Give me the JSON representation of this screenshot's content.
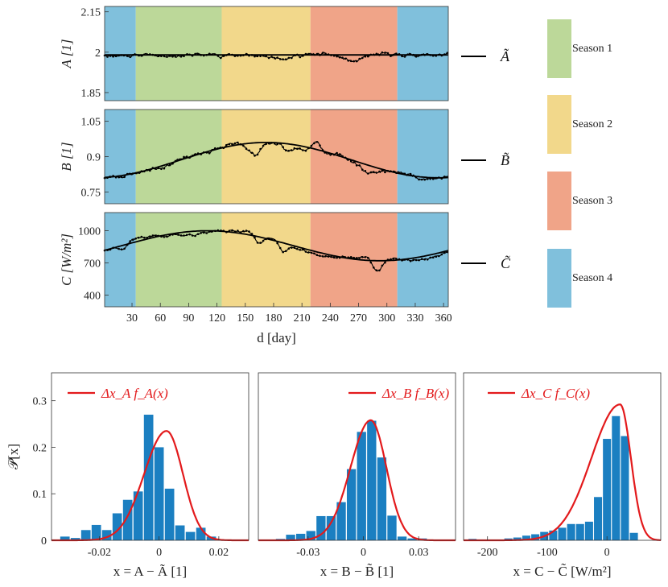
{
  "seasons": [
    {
      "label": "Season 1",
      "color": "#bcd899"
    },
    {
      "label": "Season 2",
      "color": "#f2d88b"
    },
    {
      "label": "Season 3",
      "color": "#f0a488"
    },
    {
      "label": "Season 4",
      "color": "#80c0dc"
    }
  ],
  "season_bands": [
    {
      "from": 1,
      "to": 34,
      "season": 3
    },
    {
      "from": 34,
      "to": 125,
      "season": 0
    },
    {
      "from": 125,
      "to": 219,
      "season": 1
    },
    {
      "from": 219,
      "to": 311,
      "season": 2
    },
    {
      "from": 311,
      "to": 365,
      "season": 3
    }
  ],
  "line_color": "#000000",
  "fit_color": "#e31a1c",
  "bar_color": "#1b7fc1",
  "chart_data": [
    {
      "type": "line",
      "title": "",
      "ylabel": "A [1]",
      "xlabel": "",
      "xlim": [
        1,
        365
      ],
      "ylim": [
        1.82,
        2.17
      ],
      "yticks": [
        "1.85",
        "2",
        "2.15"
      ],
      "ytick_values": [
        1.85,
        2.0,
        2.15
      ],
      "xticks": [],
      "legend_label": "Ã",
      "smooth": {
        "baseline": 1.99,
        "amp": 0.0,
        "peak_day": 172
      },
      "observed": {
        "seed": 11,
        "noise": 0.008,
        "dips": [
          {
            "day": 265,
            "depth": -0.025,
            "width": 15
          },
          {
            "day": 180,
            "depth": -0.01,
            "width": 20
          }
        ]
      }
    },
    {
      "type": "line",
      "title": "",
      "ylabel": "B [1]",
      "xlabel": "",
      "xlim": [
        1,
        365
      ],
      "ylim": [
        0.7,
        1.1
      ],
      "yticks": [
        "0.75",
        "0.9",
        "1.05"
      ],
      "ytick_values": [
        0.75,
        0.9,
        1.05
      ],
      "xticks": [],
      "legend_label": "B̃",
      "smooth": {
        "baseline": 0.81,
        "amp": 0.15,
        "peak_day": 172
      },
      "observed": {
        "seed": 23,
        "noise": 0.01,
        "dips": [
          {
            "day": 160,
            "depth": -0.05,
            "width": 8
          },
          {
            "day": 195,
            "depth": -0.035,
            "width": 8
          },
          {
            "day": 280,
            "depth": -0.03,
            "width": 12
          },
          {
            "day": 225,
            "depth": 0.04,
            "width": 6
          }
        ]
      }
    },
    {
      "type": "line",
      "title": "",
      "ylabel": "C [W/m²]",
      "xlabel": "d [day]",
      "xlim": [
        1,
        365
      ],
      "ylim": [
        290,
        1170
      ],
      "yticks": [
        "400",
        "700",
        "1000"
      ],
      "ytick_values": [
        400,
        700,
        1000
      ],
      "xticks": [
        "30",
        "60",
        "90",
        "120",
        "150",
        "180",
        "210",
        "240",
        "270",
        "300",
        "330",
        "360"
      ],
      "xtick_values": [
        30,
        60,
        90,
        120,
        150,
        180,
        210,
        240,
        270,
        300,
        330,
        360
      ],
      "legend_label": "C̃",
      "smooth": {
        "baseline": 720,
        "amp": 280,
        "peak_day": 110
      },
      "observed": {
        "seed": 37,
        "noise": 14,
        "dips": [
          {
            "day": 165,
            "depth": -90,
            "width": 6
          },
          {
            "day": 190,
            "depth": -70,
            "width": 6
          },
          {
            "day": 290,
            "depth": -130,
            "width": 7
          },
          {
            "day": 20,
            "depth": -60,
            "width": 6
          }
        ]
      }
    },
    {
      "type": "bar",
      "title": "",
      "ylabel": "𝒫[x]",
      "xlabel": "x = A − Ã   [1]",
      "xlim": [
        -0.036,
        0.03
      ],
      "ylim": [
        0,
        0.36
      ],
      "xticks": [
        "-0.02",
        "0",
        "0.02"
      ],
      "xtick_values": [
        -0.02,
        0,
        0.02
      ],
      "yticks": [
        "0",
        "0.1",
        "0.2",
        "0.3"
      ],
      "ytick_values": [
        0,
        0.1,
        0.2,
        0.3
      ],
      "bin_width": 0.0035,
      "bin_centers": [
        -0.0315,
        -0.028,
        -0.0245,
        -0.021,
        -0.0175,
        -0.014,
        -0.0105,
        -0.007,
        -0.0035,
        0.0,
        0.0035,
        0.007,
        0.0105,
        0.014,
        0.0175,
        0.021,
        0.0245
      ],
      "values": [
        0.008,
        0.005,
        0.022,
        0.033,
        0.022,
        0.058,
        0.087,
        0.105,
        0.27,
        0.2,
        0.111,
        0.032,
        0.018,
        0.027,
        0.008,
        0.0,
        0.0
      ],
      "legend_label": "Δx_A f_A(x)",
      "fit": {
        "mu": 0.0025,
        "sigma_left": 0.0075,
        "sigma_right": 0.0055,
        "peak": 0.235
      }
    },
    {
      "type": "bar",
      "title": "",
      "ylabel": "",
      "xlabel": "x = B − B̃   [1]",
      "xlim": [
        -0.057,
        0.05
      ],
      "ylim": [
        0,
        0.36
      ],
      "xticks": [
        "-0.03",
        "0",
        "0.03"
      ],
      "xtick_values": [
        -0.03,
        0,
        0.03
      ],
      "yticks": [],
      "bin_width": 0.0055,
      "bin_centers": [
        -0.045,
        -0.0395,
        -0.034,
        -0.0285,
        -0.023,
        -0.0175,
        -0.012,
        -0.0065,
        -0.001,
        0.0045,
        0.01,
        0.0155,
        0.021,
        0.0265,
        0.032,
        0.0375
      ],
      "values": [
        0.003,
        0.012,
        0.014,
        0.02,
        0.052,
        0.052,
        0.082,
        0.153,
        0.233,
        0.257,
        0.178,
        0.053,
        0.008,
        0.004,
        0.004,
        0.0
      ],
      "legend_label": "Δx_B f_B(x)",
      "fit": {
        "mu": 0.004,
        "sigma_left": 0.011,
        "sigma_right": 0.0085,
        "peak": 0.258
      }
    },
    {
      "type": "bar",
      "title": "",
      "ylabel": "",
      "xlabel": "x = C − C̃   [W/m²]",
      "xlim": [
        -240,
        90
      ],
      "ylim": [
        0,
        0.36
      ],
      "xticks": [
        "-200",
        "-100",
        "0"
      ],
      "xtick_values": [
        -200,
        -100,
        0
      ],
      "yticks": [],
      "bin_width": 15,
      "bin_centers": [
        -225,
        -210,
        -195,
        -180,
        -165,
        -150,
        -135,
        -120,
        -105,
        -90,
        -75,
        -60,
        -45,
        -30,
        -15,
        0,
        15,
        30,
        45
      ],
      "values": [
        0.003,
        0.0,
        0.0,
        0.0,
        0.004,
        0.006,
        0.01,
        0.013,
        0.018,
        0.021,
        0.027,
        0.035,
        0.035,
        0.04,
        0.093,
        0.218,
        0.267,
        0.224,
        0.016
      ],
      "legend_label": "Δx_C f_C(x)",
      "fit": {
        "mu": 22,
        "sigma_left": 48,
        "sigma_right": 18,
        "peak": 0.292
      }
    }
  ]
}
